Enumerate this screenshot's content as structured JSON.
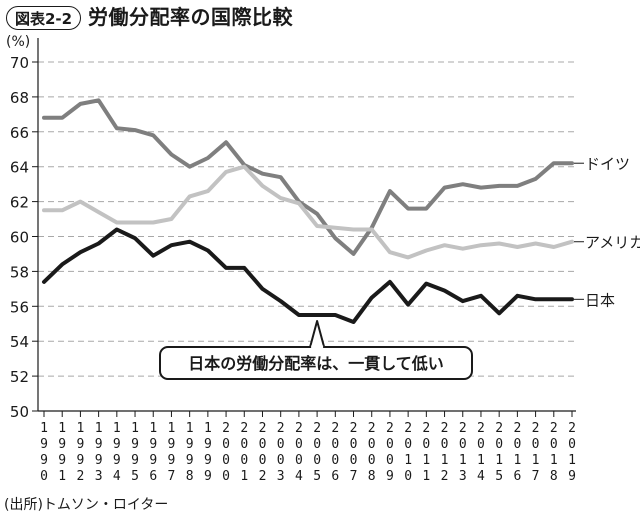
{
  "header": {
    "figure_number": "図表2-2",
    "title": "労働分配率の国際比較"
  },
  "unit_label": "(%)",
  "source_note": "(出所)トムソン・ロイター",
  "colors": {
    "germany": "#7f7f7f",
    "usa": "#c2c2c2",
    "japan": "#1a1a1a",
    "grid": "#a8a8a8",
    "axis": "#1a1a1a"
  },
  "chart_data": {
    "type": "line",
    "title": "労働分配率の国際比較",
    "xlabel": "",
    "ylabel": "(%)",
    "ylim": [
      50,
      70
    ],
    "yticks": [
      50,
      52,
      54,
      56,
      58,
      60,
      62,
      64,
      66,
      68,
      70
    ],
    "grid": "horizontal dashed",
    "x": [
      1990,
      1991,
      1992,
      1993,
      1994,
      1995,
      1996,
      1997,
      1998,
      1999,
      2000,
      2001,
      2002,
      2003,
      2004,
      2005,
      2006,
      2007,
      2008,
      2009,
      2010,
      2011,
      2012,
      2013,
      2014,
      2015,
      2016,
      2017,
      2018,
      2019
    ],
    "series": [
      {
        "name": "ドイツ",
        "color_key": "germany",
        "values": [
          66.8,
          66.8,
          67.6,
          67.8,
          66.2,
          66.1,
          65.8,
          64.7,
          64.0,
          64.5,
          65.4,
          64.1,
          63.6,
          63.4,
          62.0,
          61.3,
          59.9,
          59.0,
          60.5,
          62.6,
          61.6,
          61.6,
          62.8,
          63.0,
          62.8,
          62.9,
          62.9,
          63.3,
          64.2,
          64.2
        ]
      },
      {
        "name": "アメリカ",
        "color_key": "usa",
        "values": [
          61.5,
          61.5,
          62.0,
          61.4,
          60.8,
          60.8,
          60.8,
          61.0,
          62.3,
          62.6,
          63.7,
          64.0,
          62.9,
          62.2,
          61.9,
          60.6,
          60.5,
          60.4,
          60.4,
          59.1,
          58.8,
          59.2,
          59.5,
          59.3,
          59.5,
          59.6,
          59.4,
          59.6,
          59.4,
          59.7
        ]
      },
      {
        "name": "日本",
        "color_key": "japan",
        "values": [
          57.4,
          58.4,
          59.1,
          59.6,
          60.4,
          59.9,
          58.9,
          59.5,
          59.7,
          59.2,
          58.2,
          58.2,
          57.0,
          56.3,
          55.5,
          55.5,
          55.5,
          55.1,
          56.5,
          57.4,
          56.1,
          57.3,
          56.9,
          56.3,
          56.6,
          55.6,
          56.6,
          56.4,
          56.4,
          56.4
        ]
      }
    ],
    "annotation": {
      "text": "日本の労働分配率は、一貫して低い",
      "target_x": 2005,
      "target_y": 55.5
    }
  }
}
